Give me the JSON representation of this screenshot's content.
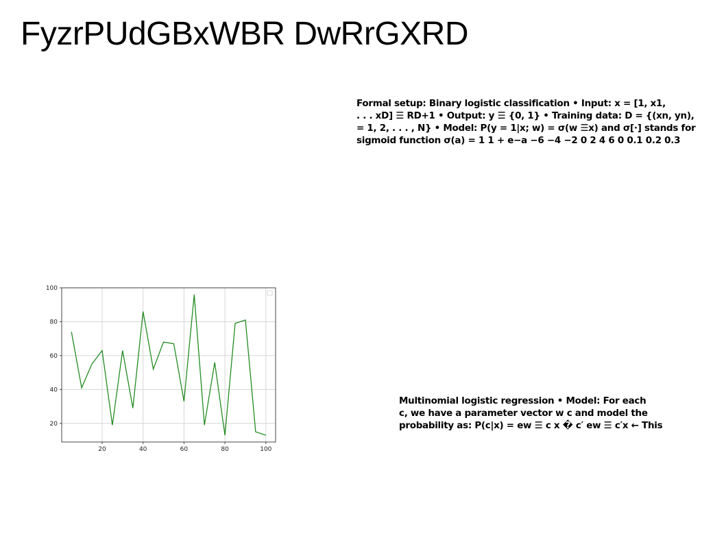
{
  "title": "FyzrPUdGBxWBR DwRrGXRD",
  "text_block_1": {
    "lines": [
      "Formal setup: Binary logistic classification • Input: x = [1, x1,",
      ". . . xD] ☰ RD+1 • Output: y ☰ {0, 1} • Training data: D = {(xn, yn),",
      "= 1, 2, . . . , N} • Model: P(y = 1|x; w) = σ(w ☰x) and σ[·] stands for",
      "sigmoid function σ(a) = 1 1 + e−a −6 −4 −2 0 2 4 6 0 0.1 0.2 0.3"
    ]
  },
  "text_block_2": {
    "lines": [
      "Multinomial logistic regression • Model: For each",
      "c, we have a parameter vector w c and model the",
      "probability as: P(c|x) = ew ☰ c x � c′ ew ☰ c′x ← This"
    ]
  },
  "chart_data": {
    "type": "line",
    "x": [
      5,
      10,
      15,
      20,
      25,
      30,
      35,
      40,
      45,
      50,
      55,
      60,
      65,
      70,
      75,
      80,
      85,
      90,
      95,
      100
    ],
    "series": [
      {
        "values": [
          74,
          41,
          55,
          63,
          19,
          63,
          29,
          86,
          52,
          68,
          67,
          33,
          96,
          19,
          56,
          13,
          79,
          81,
          15,
          13
        ]
      }
    ],
    "xticks": [
      "20",
      "40",
      "60",
      "80",
      "100"
    ],
    "yticks": [
      "20",
      "40",
      "60",
      "80",
      "100"
    ],
    "xlim": [
      0.25,
      104.75
    ],
    "ylim": [
      9,
      100
    ],
    "grid": true,
    "line_color": "#228b22",
    "legend": "top-right (empty)"
  }
}
